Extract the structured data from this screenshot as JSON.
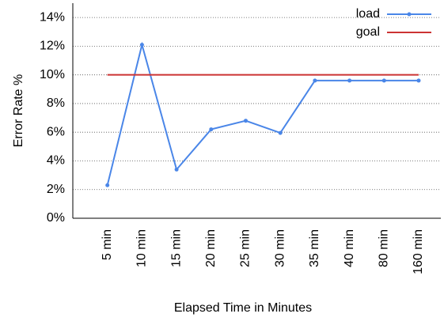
{
  "chart_data": {
    "type": "line",
    "x_label": "Elapsed Time in Minutes",
    "y_label": "Error Rate %",
    "categories": [
      "5 min",
      "10 min",
      "15 min",
      "20 min",
      "25 min",
      "30 min",
      "35 min",
      "40 min",
      "80 min",
      "160 min"
    ],
    "series": [
      {
        "name": "load",
        "color": "#4a86e8",
        "markers": true,
        "values": [
          2.3,
          12.1,
          3.4,
          6.2,
          6.8,
          5.95,
          9.6,
          9.6,
          9.6,
          9.6
        ]
      },
      {
        "name": "goal",
        "color": "#cc3333",
        "markers": false,
        "values": [
          10,
          10,
          10,
          10,
          10,
          10,
          10,
          10,
          10,
          10
        ]
      }
    ],
    "ylim": [
      0,
      15
    ],
    "yticks": [
      {
        "value": 0,
        "label": "0%"
      },
      {
        "value": 2,
        "label": "2%"
      },
      {
        "value": 4,
        "label": "4%"
      },
      {
        "value": 6,
        "label": "6%"
      },
      {
        "value": 8,
        "label": "8%"
      },
      {
        "value": 10,
        "label": "10%"
      },
      {
        "value": 12,
        "label": "12%"
      },
      {
        "value": 14,
        "label": "14%"
      }
    ],
    "grid": true,
    "legend": "top-right"
  }
}
